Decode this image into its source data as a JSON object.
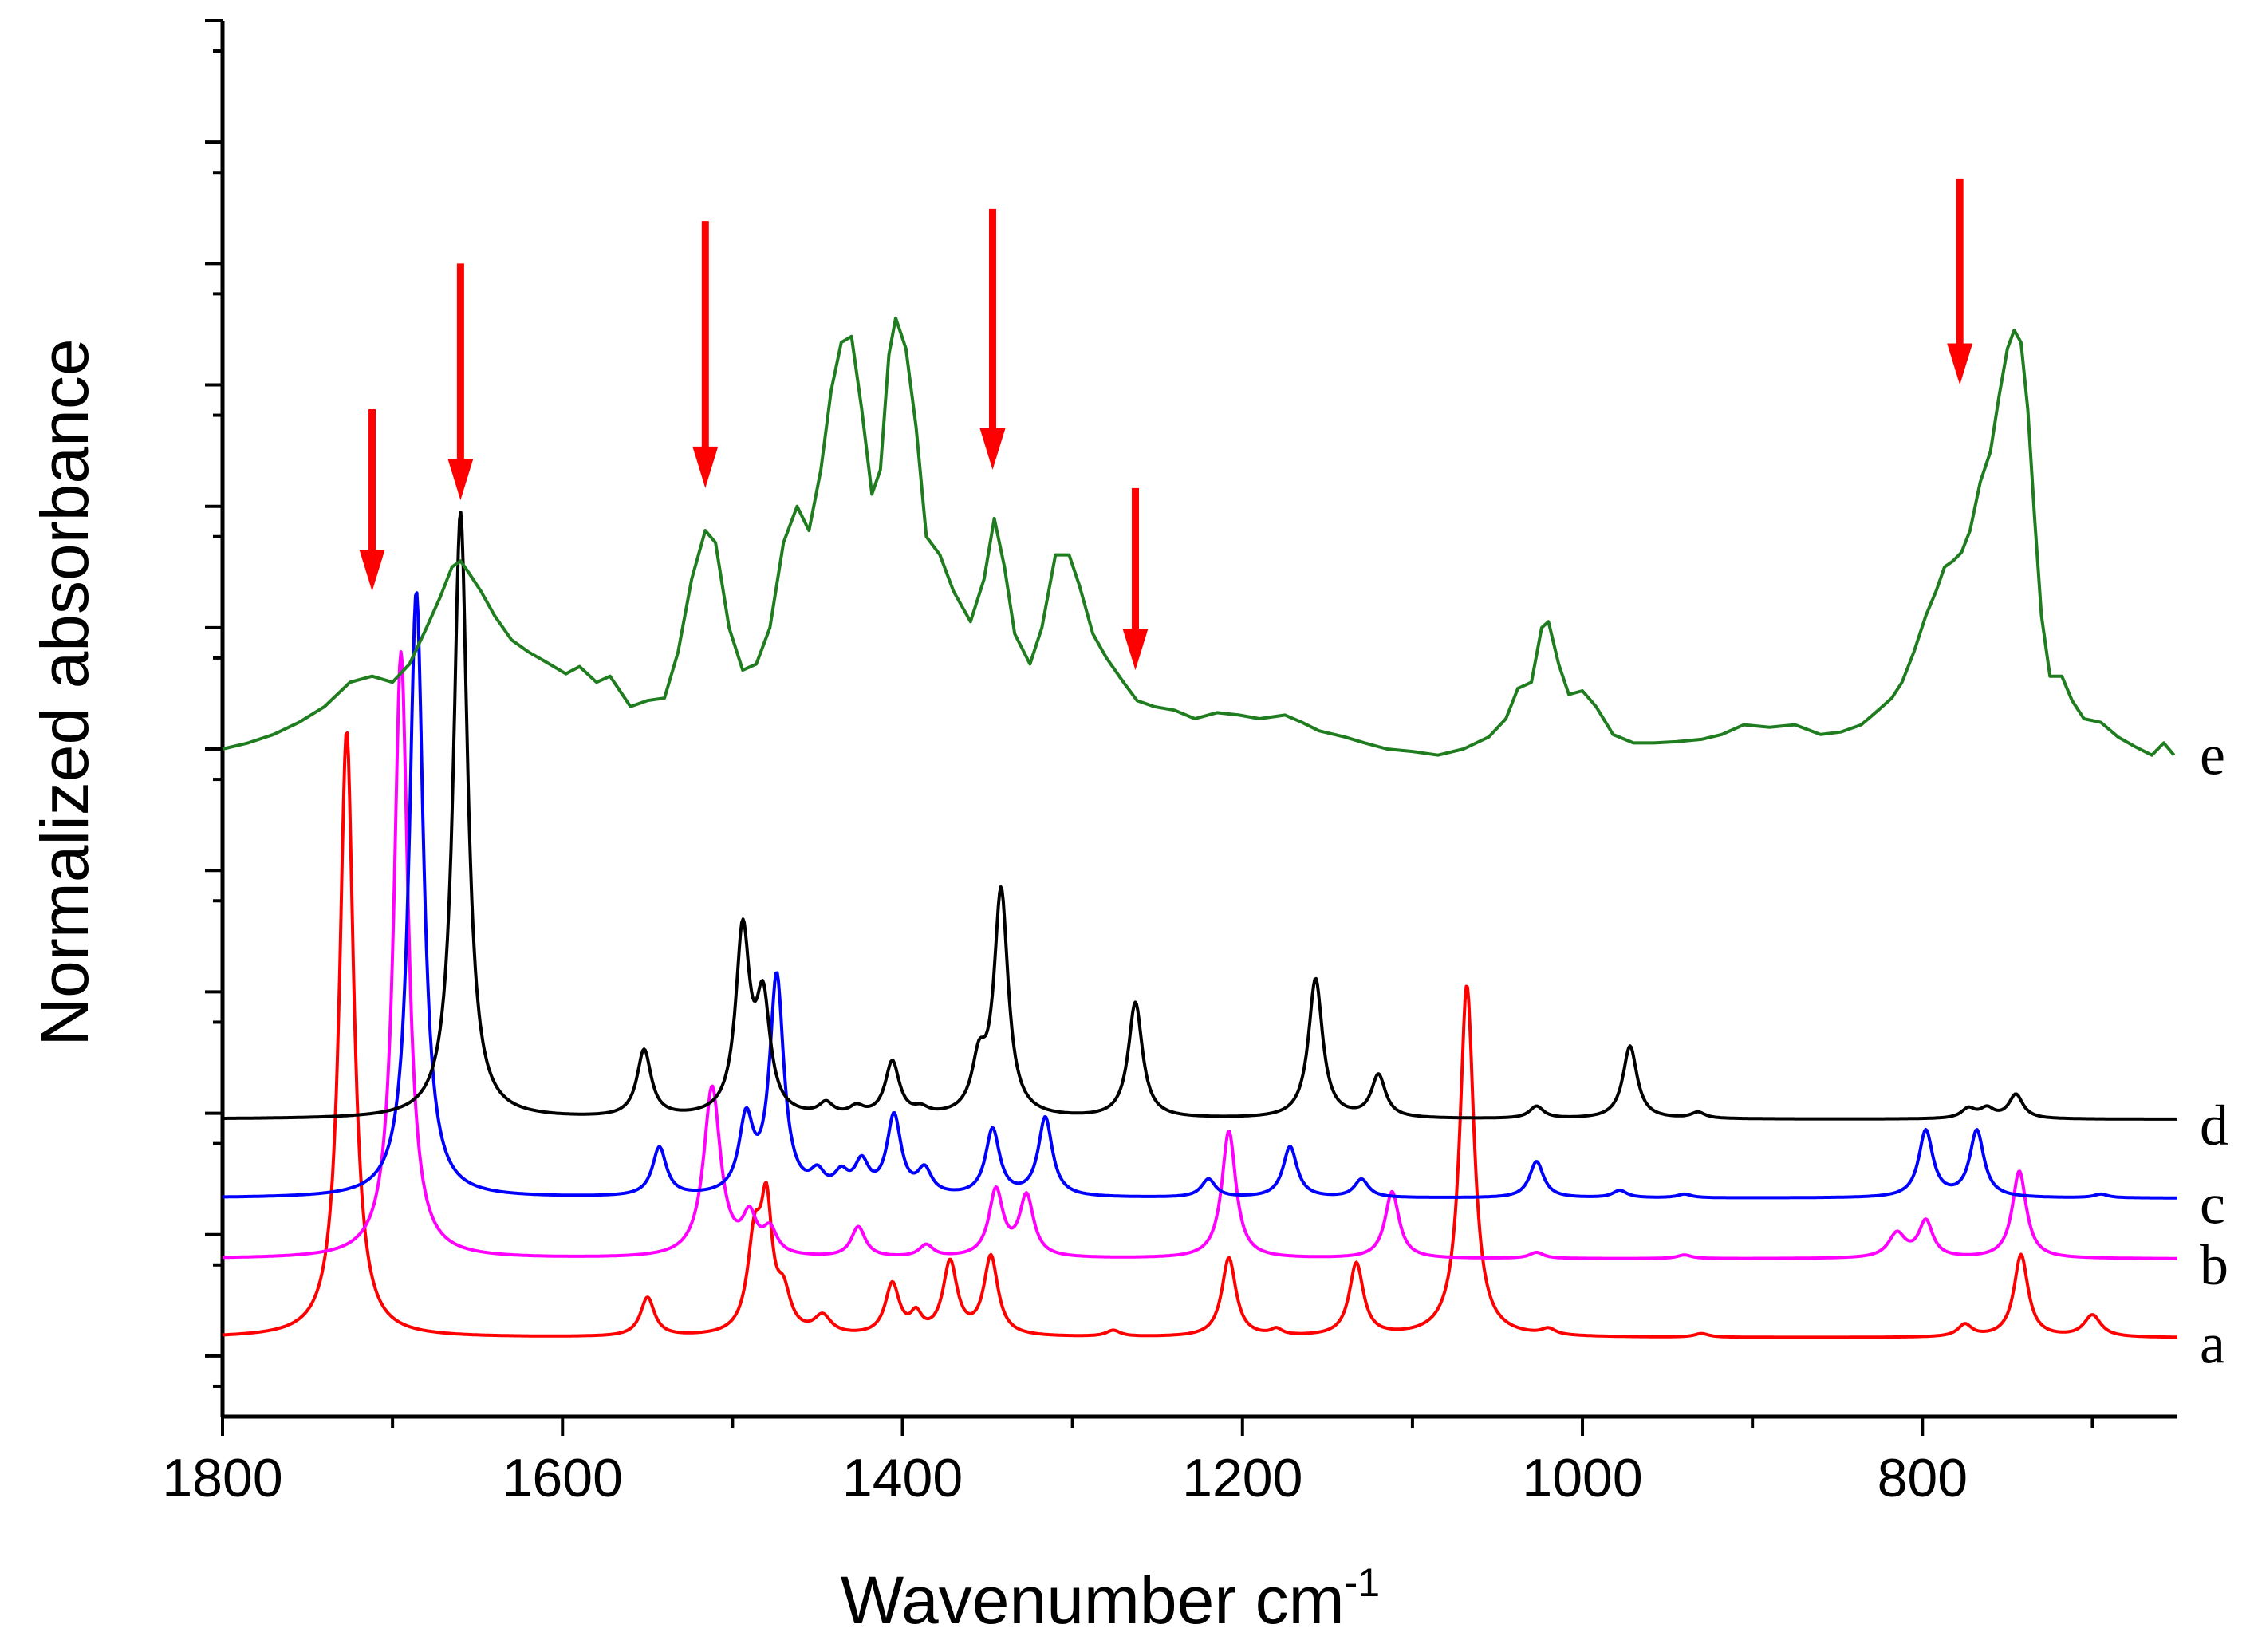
{
  "chart_data": {
    "type": "line",
    "title": "",
    "xlabel": "Wavenumber cm",
    "xlabel_superscript": "-1",
    "ylabel": "Normalized absorbance",
    "xlim": [
      1800,
      650
    ],
    "x_reversed": true,
    "xticks": [
      1800,
      1600,
      1400,
      1200,
      1000,
      800
    ],
    "xtick_labels": [
      "1800",
      "1600",
      "1400",
      "1200",
      "1000",
      "800"
    ],
    "ylim": [
      0,
      11.5
    ],
    "yticks_major": [
      0.5,
      1.5,
      2.5,
      3.5,
      4.5,
      5.5,
      6.5,
      7.5,
      8.5,
      9.5,
      10.5,
      11.5
    ],
    "grid": false,
    "series": [
      {
        "name": "a",
        "label": "a",
        "color": "#ff0000",
        "baseline": 0.65,
        "label_y": 0.6,
        "peaks": [
          [
            1727,
            5.0,
            5
          ],
          [
            1550,
            0.32,
            5
          ],
          [
            1487,
            0.75,
            5
          ],
          [
            1480,
            0.95,
            4
          ],
          [
            1470,
            0.3,
            5
          ],
          [
            1447,
            0.15,
            6
          ],
          [
            1406,
            0.42,
            5
          ],
          [
            1392,
            0.15,
            4
          ],
          [
            1372,
            0.6,
            5
          ],
          [
            1348,
            0.65,
            5
          ],
          [
            1276,
            0.05,
            5
          ],
          [
            1208,
            0.65,
            5
          ],
          [
            1180,
            0.05,
            4
          ],
          [
            1133,
            0.6,
            5
          ],
          [
            1068,
            2.9,
            5
          ],
          [
            1020,
            0.05,
            5
          ],
          [
            930,
            0.03,
            5
          ],
          [
            775,
            0.1,
            5
          ],
          [
            742,
            0.68,
            5
          ],
          [
            700,
            0.18,
            6
          ]
        ]
      },
      {
        "name": "b",
        "label": "b",
        "color": "#ff00ff",
        "baseline": 1.3,
        "label_y": 1.25,
        "peaks": [
          [
            1695,
            5.0,
            5
          ],
          [
            1512,
            1.4,
            6
          ],
          [
            1490,
            0.3,
            5
          ],
          [
            1478,
            0.2,
            5
          ],
          [
            1426,
            0.25,
            5
          ],
          [
            1386,
            0.1,
            5
          ],
          [
            1345,
            0.55,
            5
          ],
          [
            1327,
            0.5,
            5
          ],
          [
            1208,
            1.05,
            5
          ],
          [
            1112,
            0.55,
            5
          ],
          [
            1027,
            0.05,
            5
          ],
          [
            940,
            0.03,
            5
          ],
          [
            815,
            0.2,
            6
          ],
          [
            798,
            0.3,
            5
          ],
          [
            743,
            0.72,
            5
          ]
        ]
      },
      {
        "name": "c",
        "label": "c",
        "color": "#0000ff",
        "baseline": 1.8,
        "label_y": 1.75,
        "peaks": [
          [
            1686,
            5.0,
            5
          ],
          [
            1543,
            0.4,
            5
          ],
          [
            1492,
            0.6,
            5
          ],
          [
            1474,
            1.8,
            5
          ],
          [
            1450,
            0.15,
            5
          ],
          [
            1436,
            0.15,
            5
          ],
          [
            1424,
            0.25,
            5
          ],
          [
            1405,
            0.65,
            5
          ],
          [
            1387,
            0.2,
            5
          ],
          [
            1347,
            0.55,
            5
          ],
          [
            1316,
            0.65,
            5
          ],
          [
            1220,
            0.15,
            5
          ],
          [
            1172,
            0.42,
            5
          ],
          [
            1130,
            0.15,
            5
          ],
          [
            1027,
            0.3,
            5
          ],
          [
            978,
            0.06,
            5
          ],
          [
            940,
            0.03,
            5
          ],
          [
            798,
            0.55,
            5
          ],
          [
            768,
            0.55,
            5
          ],
          [
            695,
            0.03,
            5
          ]
        ]
      },
      {
        "name": "d",
        "label": "d",
        "color": "#000000",
        "baseline": 2.45,
        "label_y": 2.4,
        "peaks": [
          [
            1660,
            5.0,
            5
          ],
          [
            1552,
            0.55,
            5
          ],
          [
            1494,
            1.5,
            5
          ],
          [
            1482,
            0.9,
            5
          ],
          [
            1445,
            0.1,
            5
          ],
          [
            1427,
            0.07,
            5
          ],
          [
            1406,
            0.45,
            5
          ],
          [
            1389,
            0.05,
            5
          ],
          [
            1355,
            0.4,
            5
          ],
          [
            1342,
            1.85,
            5
          ],
          [
            1263,
            0.95,
            5
          ],
          [
            1157,
            1.15,
            5
          ],
          [
            1120,
            0.35,
            5
          ],
          [
            1027,
            0.1,
            5
          ],
          [
            972,
            0.6,
            5
          ],
          [
            932,
            0.05,
            5
          ],
          [
            773,
            0.08,
            5
          ],
          [
            762,
            0.08,
            5
          ],
          [
            745,
            0.2,
            5
          ]
        ]
      },
      {
        "name": "e",
        "label": "e",
        "color": "#1f7d1f",
        "baseline": 5.5,
        "label_y": 5.45,
        "points": [
          [
            1800,
            5.5
          ],
          [
            1785,
            5.55
          ],
          [
            1770,
            5.62
          ],
          [
            1755,
            5.72
          ],
          [
            1740,
            5.85
          ],
          [
            1725,
            6.05
          ],
          [
            1712,
            6.1
          ],
          [
            1700,
            6.05
          ],
          [
            1690,
            6.2
          ],
          [
            1680,
            6.5
          ],
          [
            1672,
            6.75
          ],
          [
            1665,
            7.0
          ],
          [
            1660,
            7.05
          ],
          [
            1655,
            6.95
          ],
          [
            1648,
            6.8
          ],
          [
            1640,
            6.6
          ],
          [
            1630,
            6.4
          ],
          [
            1620,
            6.3
          ],
          [
            1610,
            6.22
          ],
          [
            1598,
            6.12
          ],
          [
            1590,
            6.18
          ],
          [
            1580,
            6.05
          ],
          [
            1572,
            6.1
          ],
          [
            1560,
            5.85
          ],
          [
            1550,
            5.9
          ],
          [
            1540,
            5.92
          ],
          [
            1532,
            6.3
          ],
          [
            1524,
            6.9
          ],
          [
            1516,
            7.3
          ],
          [
            1510,
            7.2
          ],
          [
            1502,
            6.5
          ],
          [
            1494,
            6.15
          ],
          [
            1486,
            6.2
          ],
          [
            1478,
            6.5
          ],
          [
            1470,
            7.2
          ],
          [
            1462,
            7.5
          ],
          [
            1455,
            7.3
          ],
          [
            1448,
            7.8
          ],
          [
            1442,
            8.45
          ],
          [
            1436,
            8.85
          ],
          [
            1430,
            8.9
          ],
          [
            1424,
            8.3
          ],
          [
            1418,
            7.6
          ],
          [
            1413,
            7.8
          ],
          [
            1408,
            8.75
          ],
          [
            1404,
            9.05
          ],
          [
            1398,
            8.8
          ],
          [
            1392,
            8.15
          ],
          [
            1386,
            7.25
          ],
          [
            1378,
            7.1
          ],
          [
            1370,
            6.8
          ],
          [
            1360,
            6.55
          ],
          [
            1352,
            6.9
          ],
          [
            1346,
            7.4
          ],
          [
            1340,
            7.0
          ],
          [
            1334,
            6.45
          ],
          [
            1325,
            6.2
          ],
          [
            1318,
            6.5
          ],
          [
            1310,
            7.1
          ],
          [
            1302,
            7.1
          ],
          [
            1296,
            6.85
          ],
          [
            1288,
            6.45
          ],
          [
            1280,
            6.25
          ],
          [
            1270,
            6.05
          ],
          [
            1262,
            5.9
          ],
          [
            1252,
            5.85
          ],
          [
            1240,
            5.82
          ],
          [
            1228,
            5.75
          ],
          [
            1215,
            5.8
          ],
          [
            1202,
            5.78
          ],
          [
            1190,
            5.75
          ],
          [
            1175,
            5.78
          ],
          [
            1165,
            5.72
          ],
          [
            1155,
            5.65
          ],
          [
            1140,
            5.6
          ],
          [
            1128,
            5.55
          ],
          [
            1115,
            5.5
          ],
          [
            1100,
            5.48
          ],
          [
            1085,
            5.45
          ],
          [
            1070,
            5.5
          ],
          [
            1055,
            5.6
          ],
          [
            1045,
            5.75
          ],
          [
            1038,
            6.0
          ],
          [
            1030,
            6.05
          ],
          [
            1024,
            6.5
          ],
          [
            1020,
            6.55
          ],
          [
            1014,
            6.2
          ],
          [
            1008,
            5.95
          ],
          [
            1000,
            5.98
          ],
          [
            992,
            5.85
          ],
          [
            982,
            5.62
          ],
          [
            970,
            5.55
          ],
          [
            958,
            5.55
          ],
          [
            945,
            5.56
          ],
          [
            930,
            5.58
          ],
          [
            918,
            5.62
          ],
          [
            905,
            5.7
          ],
          [
            890,
            5.68
          ],
          [
            875,
            5.7
          ],
          [
            860,
            5.62
          ],
          [
            848,
            5.64
          ],
          [
            836,
            5.7
          ],
          [
            826,
            5.82
          ],
          [
            818,
            5.92
          ],
          [
            812,
            6.05
          ],
          [
            805,
            6.3
          ],
          [
            798,
            6.6
          ],
          [
            792,
            6.8
          ],
          [
            787,
            7.0
          ],
          [
            782,
            7.05
          ],
          [
            777,
            7.12
          ],
          [
            772,
            7.3
          ],
          [
            766,
            7.7
          ],
          [
            760,
            7.95
          ],
          [
            755,
            8.4
          ],
          [
            750,
            8.8
          ],
          [
            746,
            8.95
          ],
          [
            742,
            8.85
          ],
          [
            738,
            8.3
          ],
          [
            734,
            7.4
          ],
          [
            730,
            6.6
          ],
          [
            725,
            6.1
          ],
          [
            718,
            6.1
          ],
          [
            712,
            5.9
          ],
          [
            705,
            5.75
          ],
          [
            695,
            5.72
          ],
          [
            685,
            5.6
          ],
          [
            675,
            5.52
          ],
          [
            665,
            5.45
          ],
          [
            658,
            5.55
          ],
          [
            652,
            5.45
          ]
        ]
      }
    ],
    "annotations": [
      {
        "type": "arrow",
        "x": 1712,
        "y_tail": 8.3,
        "y_head": 6.8,
        "color": "#ff0000"
      },
      {
        "type": "arrow",
        "x": 1660,
        "y_tail": 9.5,
        "y_head": 7.55,
        "color": "#ff0000"
      },
      {
        "type": "arrow",
        "x": 1516,
        "y_tail": 9.85,
        "y_head": 7.65,
        "color": "#ff0000"
      },
      {
        "type": "arrow",
        "x": 1347,
        "y_tail": 9.95,
        "y_head": 7.8,
        "color": "#ff0000"
      },
      {
        "type": "arrow",
        "x": 1263,
        "y_tail": 7.65,
        "y_head": 6.15,
        "color": "#ff0000"
      },
      {
        "type": "arrow",
        "x": 778,
        "y_tail": 10.2,
        "y_head": 8.5,
        "color": "#ff0000"
      }
    ]
  }
}
